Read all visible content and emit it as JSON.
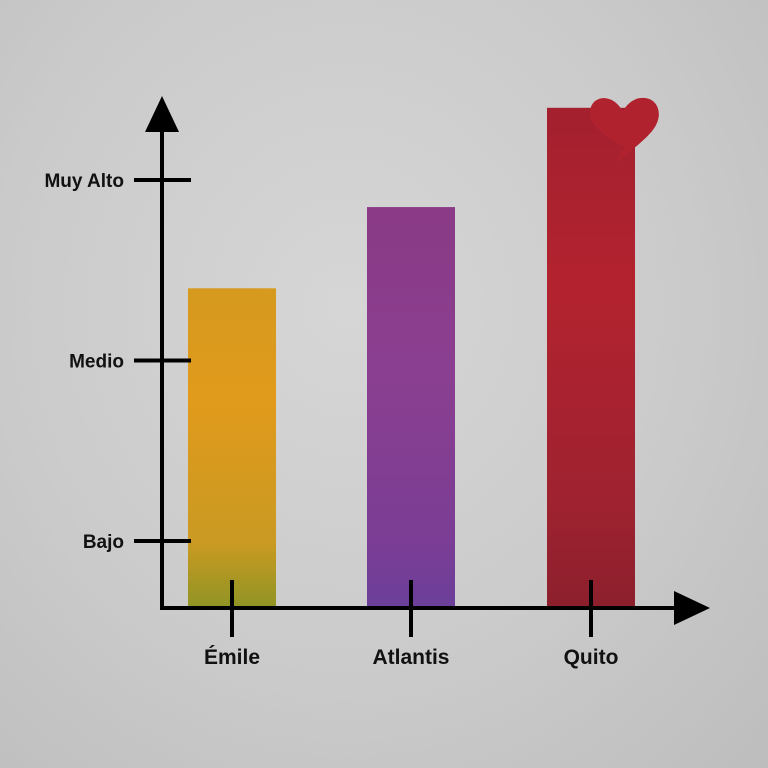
{
  "chart_data": {
    "type": "bar",
    "categories": [
      "Émile",
      "Atlantis",
      "Quito"
    ],
    "values": [
      2.4,
      2.85,
      3.4
    ],
    "yticks": [
      {
        "value": 1,
        "label": "Bajo"
      },
      {
        "value": 2,
        "label": "Medio"
      },
      {
        "value": 3,
        "label": "Muy Alto"
      }
    ],
    "ylim": [
      0,
      3.4
    ],
    "colors": [
      "#d89a1c",
      "#8a3f8f",
      "#b0222e"
    ],
    "annotation_icon": "heart-icon",
    "grid": false,
    "title": "",
    "xlabel": "",
    "ylabel": ""
  }
}
